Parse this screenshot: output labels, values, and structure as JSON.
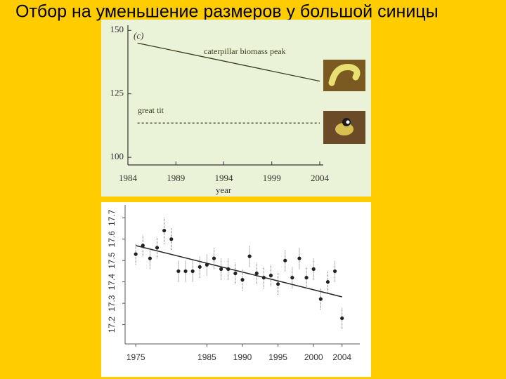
{
  "title": "Отбор на уменьшение размеров у большой синицы",
  "chart_data": [
    {
      "type": "line",
      "panel_label": "(c)",
      "x_label": "year",
      "xlim": [
        1984,
        2004
      ],
      "xticks": [
        1984,
        1989,
        1994,
        1999,
        2004
      ],
      "ylim": [
        97,
        152
      ],
      "yticks": [
        100,
        125,
        150
      ],
      "series": [
        {
          "name": "caterpillar biomass peak",
          "color": "#3a3a18",
          "dashed": false,
          "x": [
            1985,
            2004
          ],
          "values": [
            145,
            130
          ]
        },
        {
          "name": "great tit",
          "color": "#3a3a18",
          "dashed": true,
          "x": [
            1985,
            2004
          ],
          "values": [
            113.5,
            113.5
          ]
        }
      ]
    },
    {
      "type": "errorbar",
      "xlim": [
        1973.5,
        2006.5
      ],
      "xticks": [
        1975,
        1985,
        1990,
        1995,
        2000,
        2004
      ],
      "ylim": [
        17.11,
        17.76
      ],
      "yticks": [
        17.2,
        17.3,
        17.4,
        17.5,
        17.6,
        17.7
      ],
      "color": "#222222",
      "x": [
        1975,
        1976,
        1977,
        1978,
        1979,
        1980,
        1981,
        1982,
        1983,
        1984,
        1985,
        1986,
        1987,
        1988,
        1989,
        1990,
        1991,
        1992,
        1993,
        1994,
        1995,
        1996,
        1997,
        1998,
        1999,
        2000,
        2001,
        2002,
        2003,
        2004
      ],
      "values": [
        17.53,
        17.57,
        17.51,
        17.56,
        17.64,
        17.6,
        17.45,
        17.45,
        17.45,
        17.47,
        17.48,
        17.51,
        17.46,
        17.46,
        17.44,
        17.41,
        17.52,
        17.44,
        17.42,
        17.43,
        17.39,
        17.5,
        17.42,
        17.51,
        17.42,
        17.46,
        17.32,
        17.4,
        17.45,
        17.23
      ],
      "errors": [
        0.05,
        0.05,
        0.05,
        0.05,
        0.06,
        0.05,
        0.05,
        0.05,
        0.05,
        0.05,
        0.05,
        0.05,
        0.05,
        0.05,
        0.05,
        0.05,
        0.05,
        0.05,
        0.05,
        0.05,
        0.05,
        0.05,
        0.05,
        0.05,
        0.05,
        0.05,
        0.05,
        0.05,
        0.05,
        0.05
      ],
      "trend": {
        "x": [
          1975,
          2004
        ],
        "values": [
          17.57,
          17.33
        ]
      }
    }
  ]
}
